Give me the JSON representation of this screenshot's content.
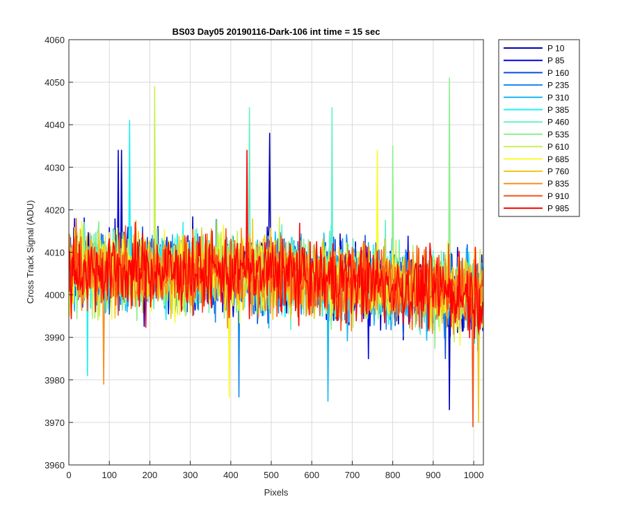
{
  "chart_data": {
    "type": "line",
    "title": "BS03 Day05 20190116-Dark-106 int time = 15 sec",
    "xlabel": "Pixels",
    "ylabel": "Cross Track Signal (ADU)",
    "xlim": [
      0,
      1024
    ],
    "ylim": [
      3960,
      4060
    ],
    "xticks": [
      0,
      100,
      200,
      300,
      400,
      500,
      600,
      700,
      800,
      900,
      1000
    ],
    "xtick_labels": [
      "0",
      "100",
      "200",
      "300",
      "400",
      "500",
      "600",
      "700",
      "800",
      "900",
      "1000"
    ],
    "yticks": [
      3960,
      3970,
      3980,
      3990,
      4000,
      4010,
      4020,
      4030,
      4040,
      4050,
      4060
    ],
    "ytick_labels": [
      "3960",
      "3970",
      "3980",
      "3990",
      "4000",
      "4010",
      "4020",
      "4030",
      "4040",
      "4050",
      "4060"
    ],
    "grid": true,
    "legend_position": "outside-top-right",
    "noise_sd": 7.5,
    "series": [
      {
        "name": "P 10",
        "color": "#0000b4",
        "trend": [
          [
            0,
            4006
          ],
          [
            512,
            4005
          ],
          [
            1024,
            4000
          ]
        ],
        "spikes": [
          [
            130,
            4034
          ],
          [
            496,
            4038
          ],
          [
            940,
            3973
          ]
        ]
      },
      {
        "name": "P 85",
        "color": "#0000e6",
        "trend": [
          [
            0,
            4006
          ],
          [
            512,
            4005
          ],
          [
            1024,
            4000
          ]
        ],
        "spikes": [
          [
            122,
            4034
          ],
          [
            740,
            3985
          ]
        ]
      },
      {
        "name": "P 160",
        "color": "#0a4fe0",
        "trend": [
          [
            0,
            4006
          ],
          [
            512,
            4005
          ],
          [
            1024,
            4000
          ]
        ],
        "spikes": [
          [
            930,
            3985
          ]
        ]
      },
      {
        "name": "P 235",
        "color": "#1487f0",
        "trend": [
          [
            0,
            4006
          ],
          [
            512,
            4005
          ],
          [
            1024,
            4000
          ]
        ],
        "spikes": [
          [
            420,
            3976
          ]
        ]
      },
      {
        "name": "P 310",
        "color": "#19b7f5",
        "trend": [
          [
            0,
            4006
          ],
          [
            512,
            4005
          ],
          [
            1024,
            4000
          ]
        ],
        "spikes": [
          [
            640,
            3975
          ]
        ]
      },
      {
        "name": "P 385",
        "color": "#1ef0f0",
        "trend": [
          [
            0,
            4006
          ],
          [
            512,
            4005
          ],
          [
            1024,
            4000
          ]
        ],
        "spikes": [
          [
            150,
            4041
          ],
          [
            45,
            3981
          ]
        ]
      },
      {
        "name": "P 460",
        "color": "#64f0c8",
        "trend": [
          [
            0,
            4006
          ],
          [
            512,
            4005
          ],
          [
            1024,
            4000
          ]
        ],
        "spikes": [
          [
            445,
            4044
          ],
          [
            650,
            4044
          ]
        ]
      },
      {
        "name": "P 535",
        "color": "#8cf08c",
        "trend": [
          [
            0,
            4006
          ],
          [
            512,
            4005
          ],
          [
            1024,
            4000
          ]
        ],
        "spikes": [
          [
            940,
            4051
          ],
          [
            800,
            4035
          ]
        ]
      },
      {
        "name": "P 610",
        "color": "#c8f050",
        "trend": [
          [
            0,
            4006
          ],
          [
            512,
            4005
          ],
          [
            1024,
            4000
          ]
        ],
        "spikes": [
          [
            212,
            4049
          ]
        ]
      },
      {
        "name": "P 685",
        "color": "#fafa28",
        "trend": [
          [
            0,
            4006
          ],
          [
            512,
            4005
          ],
          [
            1024,
            4000
          ]
        ],
        "spikes": [
          [
            762,
            4034
          ],
          [
            395,
            3976
          ]
        ]
      },
      {
        "name": "P 760",
        "color": "#f0c81e",
        "trend": [
          [
            0,
            4006
          ],
          [
            512,
            4005
          ],
          [
            1024,
            4000
          ]
        ],
        "spikes": [
          [
            1012,
            3970
          ]
        ]
      },
      {
        "name": "P 835",
        "color": "#f5911e",
        "trend": [
          [
            0,
            4006
          ],
          [
            512,
            4005
          ],
          [
            1024,
            4000
          ]
        ],
        "spikes": [
          [
            85,
            4033
          ],
          [
            85,
            3979
          ]
        ]
      },
      {
        "name": "P 910",
        "color": "#fa5014",
        "trend": [
          [
            0,
            4006
          ],
          [
            512,
            4005
          ],
          [
            1024,
            4000
          ]
        ],
        "spikes": [
          [
            997,
            3969
          ]
        ]
      },
      {
        "name": "P 985",
        "color": "#ff0000",
        "trend": [
          [
            0,
            4006
          ],
          [
            512,
            4005
          ],
          [
            1024,
            4000
          ]
        ],
        "spikes": [
          [
            440,
            4034
          ]
        ]
      }
    ]
  }
}
